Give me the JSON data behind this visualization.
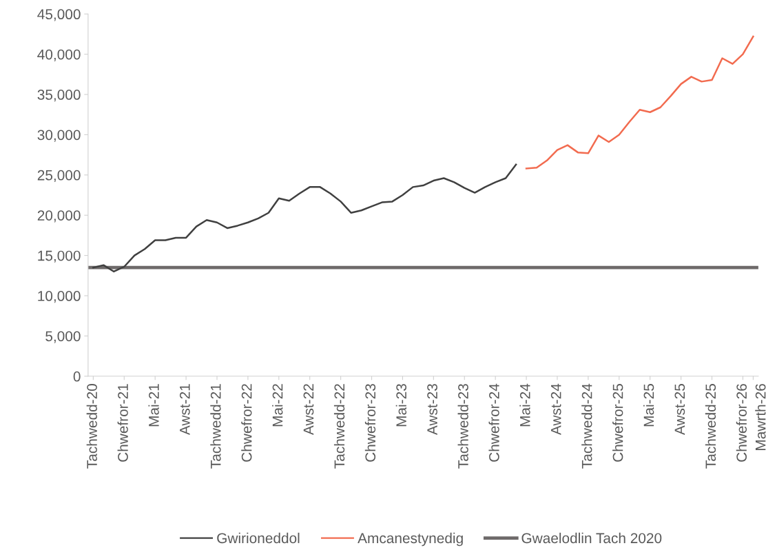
{
  "chart_data": {
    "type": "line",
    "categories": [
      "Tachwedd-20",
      null,
      null,
      "Chwefror-21",
      null,
      null,
      "Mai-21",
      null,
      null,
      "Awst-21",
      null,
      null,
      "Tachwedd-21",
      null,
      null,
      "Chwefror-22",
      null,
      null,
      "Mai-22",
      null,
      null,
      "Awst-22",
      null,
      null,
      "Tachwedd-22",
      null,
      null,
      "Chwefror-23",
      null,
      null,
      "Mai-23",
      null,
      null,
      "Awst-23",
      null,
      null,
      "Tachwedd-23",
      null,
      null,
      "Chwefror-24",
      null,
      null,
      "Mai-24",
      null,
      null,
      "Awst-24",
      null,
      null,
      "Tachwedd-24",
      null,
      null,
      "Chwefror-25",
      null,
      null,
      "Mai-25",
      null,
      null,
      "Awst-25",
      null,
      null,
      "Tachwedd-25",
      null,
      null,
      "Chwefror-26",
      "Mawrth-26"
    ],
    "series": [
      {
        "name": "Gwirioneddol",
        "color": "#404040",
        "values": [
          13500,
          13800,
          13000,
          13600,
          15000,
          15800,
          16900,
          16900,
          17200,
          17200,
          18600,
          19400,
          19100,
          18400,
          18700,
          19100,
          19600,
          20300,
          22100,
          21800,
          22700,
          23500,
          23500,
          22700,
          21700,
          20300,
          20600,
          21100,
          21600,
          21700,
          22500,
          23500,
          23700,
          24300,
          24600,
          24100,
          23400,
          22800,
          23500,
          24100,
          24600,
          26300,
          null,
          null,
          null,
          null,
          null,
          null,
          null,
          null,
          null,
          null,
          null,
          null,
          null,
          null,
          null,
          null,
          null,
          null,
          null,
          null,
          null,
          null,
          null
        ]
      },
      {
        "name": "Amcanestynedig",
        "color": "#f26b4f",
        "values": [
          null,
          null,
          null,
          null,
          null,
          null,
          null,
          null,
          null,
          null,
          null,
          null,
          null,
          null,
          null,
          null,
          null,
          null,
          null,
          null,
          null,
          null,
          null,
          null,
          null,
          null,
          null,
          null,
          null,
          null,
          null,
          null,
          null,
          null,
          null,
          null,
          null,
          null,
          null,
          null,
          null,
          null,
          25800,
          25900,
          26800,
          28100,
          28700,
          27800,
          27700,
          29900,
          29100,
          30000,
          31600,
          33100,
          32800,
          33400,
          34800,
          36300,
          37200,
          36600,
          36800,
          39500,
          38800,
          40000,
          42200
        ]
      }
    ],
    "ref_lines": [
      {
        "axis": "y",
        "value": 13500,
        "label": "Gwaelodlin Tach 2020",
        "color": "#6e6a6a",
        "line_style": "solid"
      }
    ],
    "ylim": [
      0,
      45000
    ],
    "yticks": [
      {
        "value": 0,
        "label": "0"
      },
      {
        "value": 5000,
        "label": "5,000"
      },
      {
        "value": 10000,
        "label": "10,000"
      },
      {
        "value": 15000,
        "label": "15,000"
      },
      {
        "value": 20000,
        "label": "20,000"
      },
      {
        "value": 25000,
        "label": "25,000"
      },
      {
        "value": 30000,
        "label": "30,000"
      },
      {
        "value": 35000,
        "label": "35,000"
      },
      {
        "value": 40000,
        "label": "40,000"
      },
      {
        "value": 45000,
        "label": "45,000"
      }
    ],
    "grid": false,
    "legend": "bottom",
    "marker": "none",
    "line_style": "solid"
  }
}
